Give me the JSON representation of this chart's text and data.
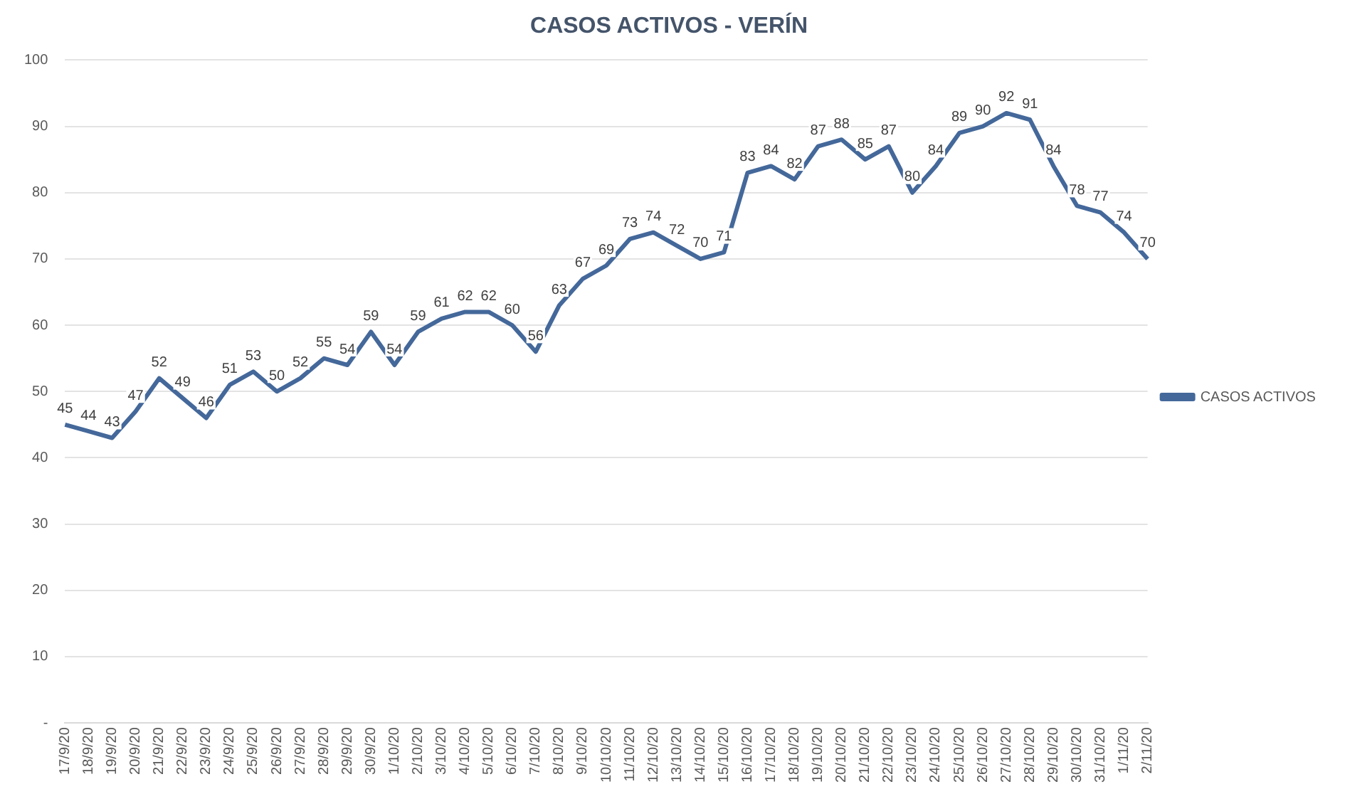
{
  "chart_data": {
    "type": "line",
    "title": "CASOS ACTIVOS - VERÍN",
    "categories": [
      "17/9/20",
      "18/9/20",
      "19/9/20",
      "20/9/20",
      "21/9/20",
      "22/9/20",
      "23/9/20",
      "24/9/20",
      "25/9/20",
      "26/9/20",
      "27/9/20",
      "28/9/20",
      "29/9/20",
      "30/9/20",
      "1/10/20",
      "2/10/20",
      "3/10/20",
      "4/10/20",
      "5/10/20",
      "6/10/20",
      "7/10/20",
      "8/10/20",
      "9/10/20",
      "10/10/20",
      "11/10/20",
      "12/10/20",
      "13/10/20",
      "14/10/20",
      "15/10/20",
      "16/10/20",
      "17/10/20",
      "18/10/20",
      "19/10/20",
      "20/10/20",
      "21/10/20",
      "22/10/20",
      "23/10/20",
      "24/10/20",
      "25/10/20",
      "26/10/20",
      "27/10/20",
      "28/10/20",
      "29/10/20",
      "30/10/20",
      "31/10/20",
      "1/11/20",
      "2/11/20"
    ],
    "series": [
      {
        "name": "CASOS ACTIVOS",
        "color": "#44689a",
        "values": [
          45,
          44,
          43,
          47,
          52,
          49,
          46,
          51,
          53,
          50,
          52,
          55,
          54,
          59,
          54,
          59,
          61,
          62,
          62,
          60,
          56,
          63,
          67,
          69,
          73,
          74,
          72,
          70,
          71,
          83,
          84,
          82,
          87,
          88,
          85,
          87,
          80,
          84,
          89,
          90,
          92,
          91,
          84,
          78,
          77,
          74,
          70
        ]
      }
    ],
    "ylim": [
      0,
      100
    ],
    "yticks": [
      {
        "value": 0,
        "label": "-"
      },
      10,
      20,
      30,
      40,
      50,
      60,
      70,
      80,
      90,
      100
    ],
    "grid": "y",
    "legend": "right",
    "marker": "none",
    "line_style": "solid",
    "data_labels": true
  }
}
